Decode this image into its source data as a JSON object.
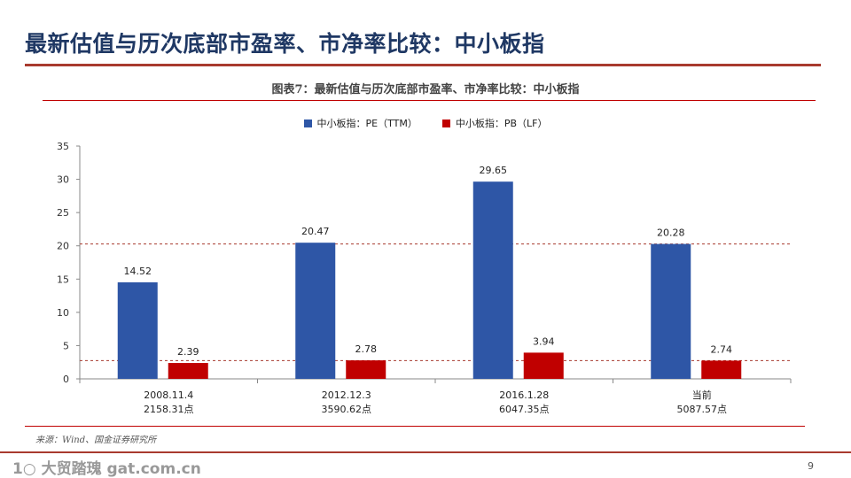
{
  "slide": {
    "title": "最新估值与历次底部市盈率、市净率比较：中小板指",
    "caption": "图表7：最新估值与历次底部市盈率、市净率比较：中小板指",
    "source": "来源：Wind、国金证券研究所",
    "watermark": "1○ 大贸踏瑰 gat.com.cn",
    "page_number": "9"
  },
  "colors": {
    "pe": "#2e56a6",
    "pb": "#c00000",
    "title": "#1f3864",
    "rule": "#a83a2e"
  },
  "chart_data": {
    "type": "bar",
    "categories": [
      "2008.11.4",
      "2012.12.3",
      "2016.1.28",
      "当前"
    ],
    "category_sublabels": [
      "2158.31点",
      "3590.62点",
      "6047.35点",
      "5087.57点"
    ],
    "series": [
      {
        "name": "中小板指：PE（TTM）",
        "values": [
          14.52,
          20.47,
          29.65,
          20.28
        ]
      },
      {
        "name": "中小板指：PB（LF）",
        "values": [
          2.39,
          2.78,
          3.94,
          2.74
        ]
      }
    ],
    "data_labels": [
      [
        "14.52",
        "20.47",
        "29.65",
        "20.28"
      ],
      [
        "2.39",
        "2.78",
        "3.94",
        "2.74"
      ]
    ],
    "reference_lines": [
      20.28,
      2.74
    ],
    "ylim": [
      0,
      35
    ],
    "yticks": [
      0,
      5,
      10,
      15,
      20,
      25,
      30,
      35
    ],
    "legend_position": "top-center",
    "grid": false
  }
}
